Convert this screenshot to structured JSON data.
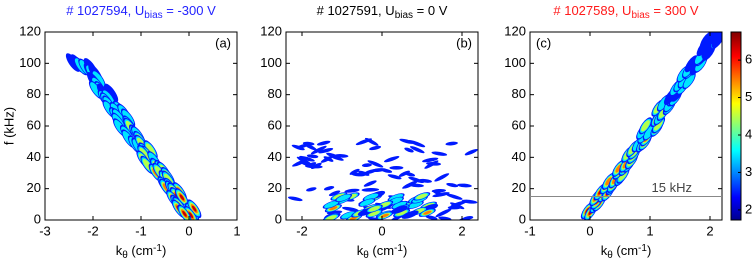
{
  "chart_data": [
    {
      "type": "heatmap",
      "title": {
        "text": "# 1027594, U",
        "sub": "bias",
        "tail": " = -300 V"
      },
      "title_color": "#2323ff",
      "panel_label": "(a)",
      "x_label": {
        "text": "k",
        "sub": "θ",
        "tail": " (cm",
        "sup": "-1",
        "end": ")"
      },
      "y_label": "f (kHz)",
      "xlim": [
        -3,
        1
      ],
      "xticks": [
        -3,
        -2,
        -1,
        0,
        1
      ],
      "ylim": [
        0,
        120
      ],
      "yticks": [
        0,
        20,
        40,
        60,
        80,
        100,
        120
      ]
    },
    {
      "type": "heatmap",
      "title": {
        "text": "# 1027591, U",
        "sub": "bias",
        "tail": " = 0 V"
      },
      "title_color": "#000000",
      "panel_label": "(b)",
      "x_label": {
        "text": "k",
        "sub": "θ",
        "tail": " (cm",
        "sup": "-1",
        "end": ")"
      },
      "xlim": [
        -2.4,
        2.4
      ],
      "xticks": [
        -2,
        0,
        2
      ],
      "ylim": [
        0,
        120
      ],
      "yticks": [
        0,
        20,
        40,
        60,
        80,
        100,
        120
      ]
    },
    {
      "type": "heatmap",
      "title": {
        "text": "# 1027589, U",
        "sub": "bias",
        "tail": " = 300 V"
      },
      "title_color": "#ff1a1a",
      "panel_label": "(c)",
      "x_label": {
        "text": "k",
        "sub": "θ",
        "tail": " (cm",
        "sup": "-1",
        "end": ")"
      },
      "xlim": [
        -1,
        2.2
      ],
      "xticks": [
        -1,
        0,
        1,
        2
      ],
      "ylim": [
        0,
        120
      ],
      "yticks": [
        0,
        20,
        40,
        60,
        80,
        100,
        120
      ],
      "hline": {
        "value": 15,
        "label": "15 kHz"
      },
      "colorbar": {
        "lim": [
          1.73,
          6.75
        ],
        "ticks": [
          2,
          3,
          4,
          5,
          6
        ]
      }
    }
  ]
}
